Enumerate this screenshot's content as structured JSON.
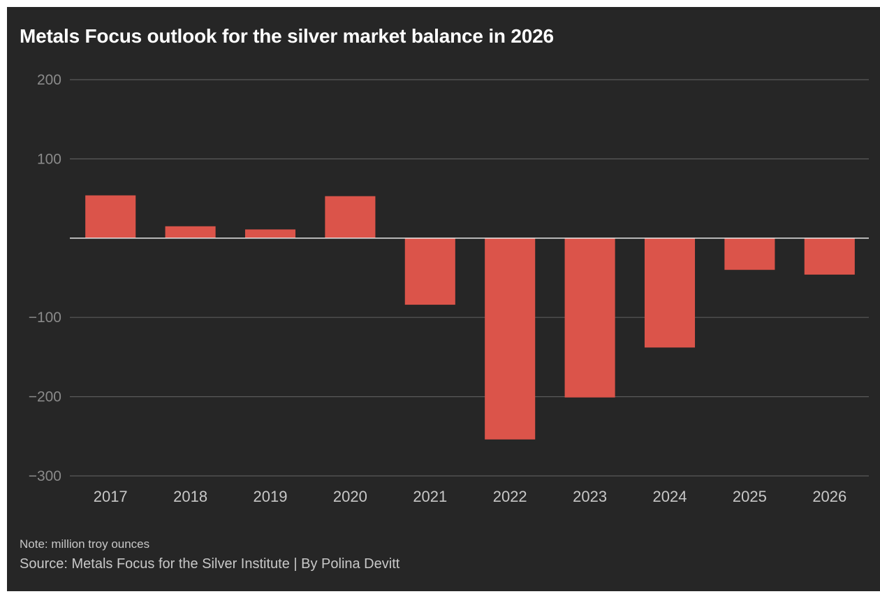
{
  "header": {
    "title": "Metals Focus outlook for the silver market balance in 2026"
  },
  "footer": {
    "note": "Note: million troy ounces",
    "source": "Source: Metals Focus for the Silver Institute | By Polina Devitt"
  },
  "colors": {
    "background": "#262626",
    "bar": "#db544a",
    "gridline": "#5a5a5a",
    "zero_line": "#e6e6e6",
    "tick_label": "#8a8a8a",
    "category_label": "#c8c8c8"
  },
  "chart_data": {
    "type": "bar",
    "title": "Metals Focus outlook for the silver market balance in 2026",
    "xlabel": "",
    "ylabel": "",
    "categories": [
      "2017",
      "2018",
      "2019",
      "2020",
      "2021",
      "2022",
      "2023",
      "2024",
      "2025",
      "2026"
    ],
    "values": [
      54,
      15,
      11,
      53,
      -84,
      -254,
      -201,
      -138,
      -40,
      -46
    ],
    "ylim": [
      -300,
      200
    ],
    "yticks": [
      200,
      100,
      -100,
      -200,
      -300
    ],
    "ytick_labels": [
      "200",
      "100",
      "−100",
      "−200",
      "−300"
    ],
    "grid": true,
    "legend": "none"
  }
}
